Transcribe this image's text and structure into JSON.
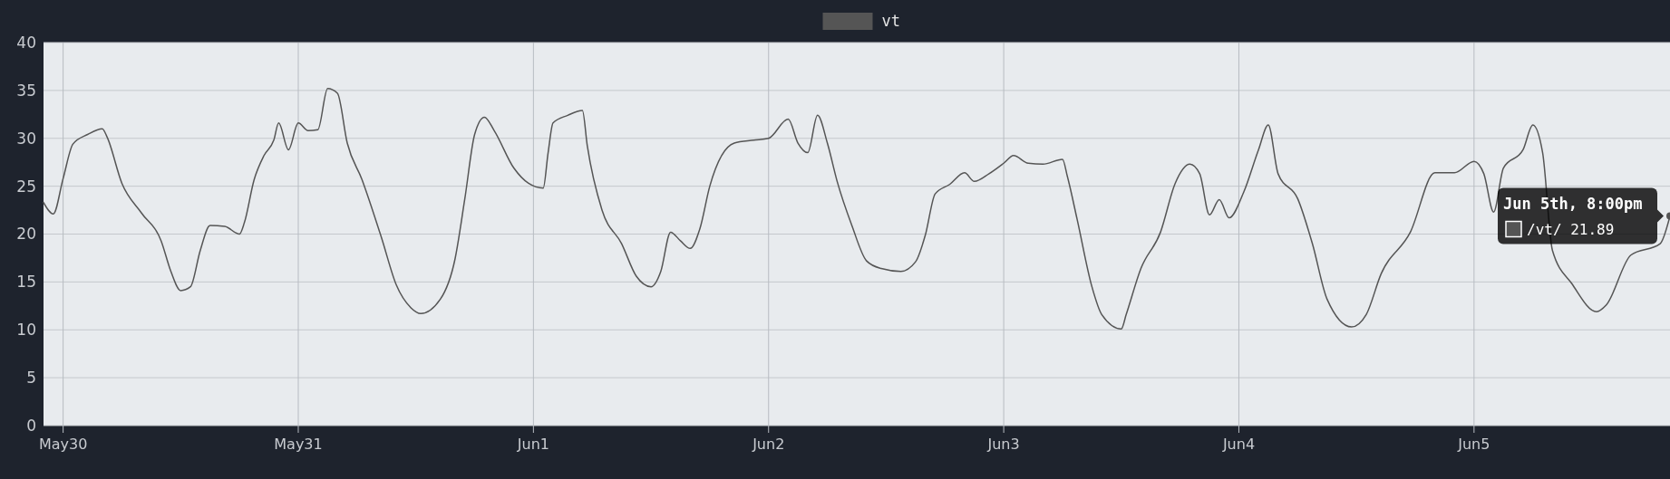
{
  "chart_data": {
    "type": "line",
    "legend": "top",
    "grid": true,
    "marker": "none",
    "line_style": "solid",
    "xlim": [
      "--05-29T22:00",
      "--06-05T20:00"
    ],
    "xticks": [
      {
        "value": "--05-30",
        "label": "May30"
      },
      {
        "value": "--05-31",
        "label": "May31"
      },
      {
        "value": "--06-01",
        "label": "Jun1"
      },
      {
        "value": "--06-02",
        "label": "Jun2"
      },
      {
        "value": "--06-03",
        "label": "Jun3"
      },
      {
        "value": "--06-04",
        "label": "Jun4"
      },
      {
        "value": "--06-05",
        "label": "Jun5"
      }
    ],
    "ylim": [
      0,
      40
    ],
    "yticks": [
      0,
      5,
      10,
      15,
      20,
      25,
      30,
      35,
      40
    ],
    "annotations": [
      {
        "text": "Jun 5th, 8:00pm",
        "x": "--06-05T20:00",
        "y": 21.89
      },
      "/vt/ 21.89"
    ],
    "series": [
      {
        "name": "vt",
        "color": "#555555",
        "x": [
          "--05-29T22:00",
          "--05-29T23:00",
          "--05-30T00:00",
          "--05-30T01:00",
          "--05-30T02:30",
          "--05-30T04:00",
          "--05-30T04:30",
          "--05-30T06:00",
          "--05-30T08:00",
          "--05-30T10:00",
          "--05-30T11:00",
          "--05-30T12:00",
          "--05-30T13:00",
          "--05-30T14:00",
          "--05-30T15:00",
          "--05-30T16:30",
          "--05-30T18:00",
          "--05-30T18:30",
          "--05-30T19:30",
          "--05-30T20:30",
          "--05-30T21:30",
          "--05-30T22:00",
          "--05-30T23:00",
          "--05-31T00:00",
          "--05-31T01:00",
          "--05-31T02:00",
          "--05-31T03:00",
          "--05-31T04:00",
          "--05-31T05:00",
          "--05-31T06:30",
          "--05-31T08:30",
          "--05-31T10:00",
          "--05-31T11:30",
          "--05-31T12:30",
          "--05-31T14:30",
          "--05-31T16:00",
          "--05-31T17:00",
          "--05-31T18:00",
          "--05-31T19:00",
          "--05-31T20:00",
          "--05-31T22:00",
          "--05-31T23:30",
          "--06-01T01:00",
          "--06-01T01:30",
          "--06-01T02:00",
          "--06-01T03:30",
          "--06-01T05:00",
          "--06-01T05:30",
          "--06-01T07:00",
          "--06-01T09:00",
          "--06-01T10:30",
          "--06-01T12:00",
          "--06-01T13:00",
          "--06-01T14:00",
          "--06-01T15:00",
          "--06-01T16:00",
          "--06-01T17:00",
          "--06-01T18:00",
          "--06-01T20:30",
          "--06-01T22:30",
          "--06-02T00:00",
          "--06-02T02:00",
          "--06-02T03:00",
          "--06-02T04:00",
          "--06-02T05:00",
          "--06-02T06:00",
          "--06-02T07:00",
          "--06-02T08:30",
          "--06-02T10:00",
          "--06-02T11:30",
          "--06-02T13:30",
          "--06-02T15:00",
          "--06-02T16:00",
          "--06-02T17:00",
          "--06-02T18:30",
          "--06-02T20:00",
          "--06-02T21:00",
          "--06-02T22:30",
          "--06-03T00:00",
          "--06-03T01:00",
          "--06-03T02:30",
          "--06-03T04:00",
          "--06-03T06:00",
          "--06-03T06:30",
          "--06-03T07:30",
          "--06-03T09:00",
          "--06-03T10:00",
          "--06-03T12:00",
          "--06-03T12:30",
          "--06-03T14:00",
          "--06-03T16:00",
          "--06-03T17:30",
          "--06-03T19:00",
          "--06-03T20:00",
          "--06-03T21:00",
          "--06-03T22:00",
          "--06-03T23:00",
          "--06-04T00:30",
          "--06-04T02:00",
          "--06-04T03:00",
          "--06-04T04:00",
          "--06-04T06:00",
          "--06-04T07:30",
          "--06-04T09:00",
          "--06-04T11:30",
          "--06-04T13:00",
          "--06-04T14:30",
          "--06-04T17:30",
          "--06-04T20:00",
          "--06-04T22:00",
          "--06-05T00:00",
          "--06-05T01:00",
          "--06-05T02:00",
          "--06-05T03:00",
          "--06-05T05:00",
          "--06-05T06:00",
          "--06-05T07:00",
          "--06-05T08:00",
          "--06-05T10:00",
          "--06-05T12:30",
          "--06-05T13:30",
          "--06-05T16:00",
          "--06-05T19:00",
          "--06-05T20:00"
        ],
        "values": [
          23.3,
          22.1,
          25.8,
          29.4,
          30.4,
          31.0,
          30.1,
          25.3,
          22.2,
          19.3,
          16.1,
          14.1,
          14.5,
          18.3,
          20.9,
          20.8,
          20.0,
          21.2,
          25.7,
          28.2,
          29.8,
          31.6,
          28.8,
          31.6,
          30.8,
          30.9,
          35.2,
          34.7,
          29.5,
          25.7,
          19.6,
          14.7,
          12.3,
          11.7,
          13.2,
          17.4,
          23.7,
          30.4,
          32.2,
          30.8,
          26.9,
          25.3,
          24.8,
          28.5,
          31.6,
          32.4,
          32.9,
          29.2,
          22.5,
          19.0,
          15.6,
          14.5,
          16.1,
          20.2,
          19.3,
          18.5,
          20.6,
          25.0,
          29.5,
          29.8,
          30.0,
          32.0,
          29.5,
          28.5,
          32.4,
          29.5,
          25.5,
          20.9,
          17.2,
          16.4,
          16.1,
          17.1,
          19.9,
          24.2,
          25.2,
          26.4,
          25.5,
          26.3,
          27.4,
          28.2,
          27.4,
          27.3,
          27.8,
          26.0,
          21.5,
          14.5,
          11.6,
          10.1,
          11.6,
          16.4,
          20.2,
          25.3,
          27.3,
          26.3,
          22.0,
          23.6,
          21.7,
          24.4,
          28.8,
          31.4,
          26.3,
          23.7,
          19.0,
          13.2,
          10.3,
          11.6,
          15.8,
          20.2,
          26.4,
          26.4,
          27.6,
          26.3,
          22.3,
          26.9,
          28.8,
          31.4,
          28.5,
          18.3,
          14.8,
          11.9,
          12.6,
          17.8,
          19.0,
          21.89
        ]
      }
    ]
  }
}
